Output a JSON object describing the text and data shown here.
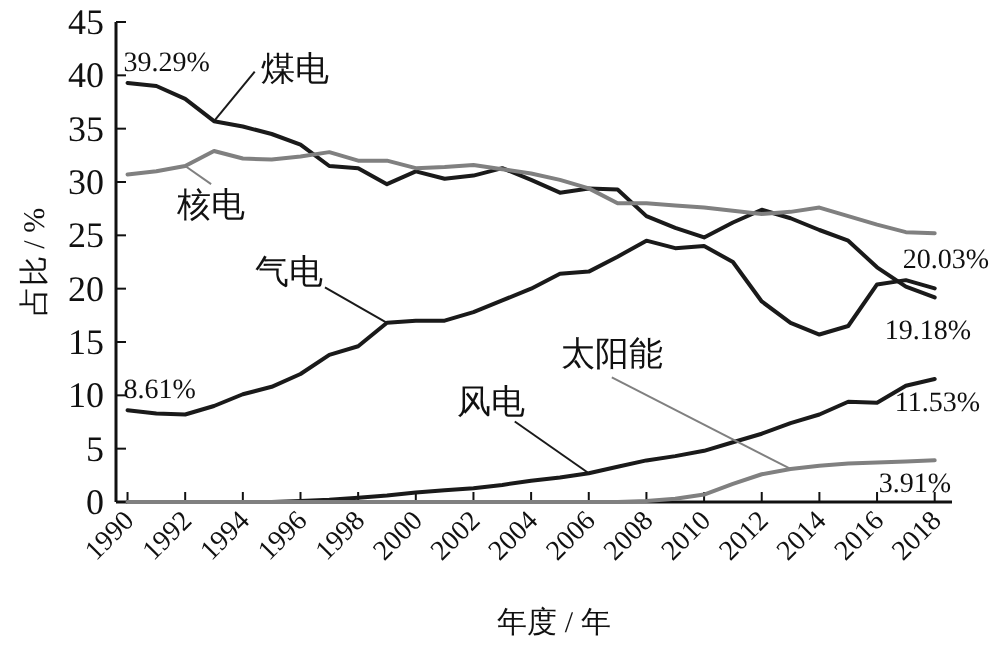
{
  "chart_data": {
    "type": "line",
    "xlabel": "年度 / 年",
    "ylabel": "占比 / %",
    "x": [
      1990,
      1991,
      1992,
      1993,
      1994,
      1995,
      1996,
      1997,
      1998,
      1999,
      2000,
      2001,
      2002,
      2003,
      2004,
      2005,
      2006,
      2007,
      2008,
      2009,
      2010,
      2011,
      2012,
      2013,
      2014,
      2015,
      2016,
      2017,
      2018
    ],
    "series": [
      {
        "name": "煤电",
        "color": "#1a1a1a",
        "values": [
          39.29,
          39.0,
          37.8,
          35.7,
          35.2,
          34.5,
          33.5,
          31.5,
          31.3,
          29.8,
          31.0,
          30.3,
          30.6,
          31.3,
          30.2,
          29.0,
          29.4,
          29.3,
          26.8,
          25.7,
          24.8,
          26.2,
          27.4,
          26.6,
          25.5,
          24.5,
          22.0,
          20.2,
          19.18
        ],
        "value_labels": [
          "39.29%",
          null,
          null,
          null,
          null,
          null,
          null,
          null,
          null,
          null,
          null,
          null,
          null,
          null,
          null,
          null,
          null,
          null,
          null,
          null,
          null,
          null,
          null,
          null,
          null,
          null,
          null,
          null,
          "19.18%"
        ]
      },
      {
        "name": "核电",
        "color": "#808080",
        "values": [
          30.7,
          31.0,
          31.5,
          32.9,
          32.2,
          32.1,
          32.4,
          32.8,
          32.0,
          32.0,
          31.3,
          31.4,
          31.6,
          31.2,
          30.8,
          30.2,
          29.4,
          28.0,
          28.0,
          27.8,
          27.6,
          27.3,
          27.0,
          27.2,
          27.6,
          26.8,
          26.0,
          25.3,
          25.2
        ]
      },
      {
        "name": "气电",
        "color": "#1a1a1a",
        "values": [
          8.61,
          8.3,
          8.2,
          9.0,
          10.1,
          10.8,
          12.0,
          13.8,
          14.6,
          16.8,
          17.0,
          17.0,
          17.8,
          18.9,
          20.0,
          21.4,
          21.6,
          23.0,
          24.5,
          23.8,
          24.0,
          22.5,
          18.8,
          16.8,
          15.7,
          16.5,
          20.4,
          20.8,
          20.03
        ],
        "value_labels": [
          "8.61%",
          null,
          null,
          null,
          null,
          null,
          null,
          null,
          null,
          null,
          null,
          null,
          null,
          null,
          null,
          null,
          null,
          null,
          null,
          null,
          null,
          null,
          null,
          null,
          null,
          null,
          null,
          null,
          "20.03%"
        ]
      },
      {
        "name": "风电",
        "color": "#1a1a1a",
        "values": [
          0.0,
          0.0,
          0.0,
          0.0,
          0.0,
          0.0,
          0.1,
          0.2,
          0.4,
          0.6,
          0.9,
          1.1,
          1.3,
          1.6,
          2.0,
          2.3,
          2.7,
          3.3,
          3.9,
          4.3,
          4.8,
          5.6,
          6.4,
          7.4,
          8.2,
          9.4,
          9.3,
          10.9,
          11.53
        ],
        "value_labels": [
          null,
          null,
          null,
          null,
          null,
          null,
          null,
          null,
          null,
          null,
          null,
          null,
          null,
          null,
          null,
          null,
          null,
          null,
          null,
          null,
          null,
          null,
          null,
          null,
          null,
          null,
          null,
          null,
          "11.53%"
        ]
      },
      {
        "name": "太阳能",
        "color": "#808080",
        "values": [
          0.0,
          0.0,
          0.0,
          0.0,
          0.0,
          0.0,
          0.0,
          0.0,
          0.0,
          0.0,
          0.0,
          0.0,
          0.0,
          0.0,
          0.0,
          0.0,
          0.0,
          0.0,
          0.1,
          0.3,
          0.7,
          1.7,
          2.6,
          3.1,
          3.4,
          3.6,
          3.7,
          3.8,
          3.91
        ],
        "value_labels": [
          null,
          null,
          null,
          null,
          null,
          null,
          null,
          null,
          null,
          null,
          null,
          null,
          null,
          null,
          null,
          null,
          null,
          null,
          null,
          null,
          null,
          null,
          null,
          null,
          null,
          null,
          null,
          null,
          "3.91%"
        ]
      }
    ],
    "xlim": [
      1989.6,
      2018.6
    ],
    "ylim": [
      0,
      45
    ],
    "xticks": [
      1990,
      1992,
      1994,
      1996,
      1998,
      2000,
      2002,
      2004,
      2006,
      2008,
      2010,
      2012,
      2014,
      2016,
      2018
    ],
    "yticks": [
      0,
      5,
      10,
      15,
      20,
      25,
      30,
      35,
      40,
      45
    ]
  }
}
